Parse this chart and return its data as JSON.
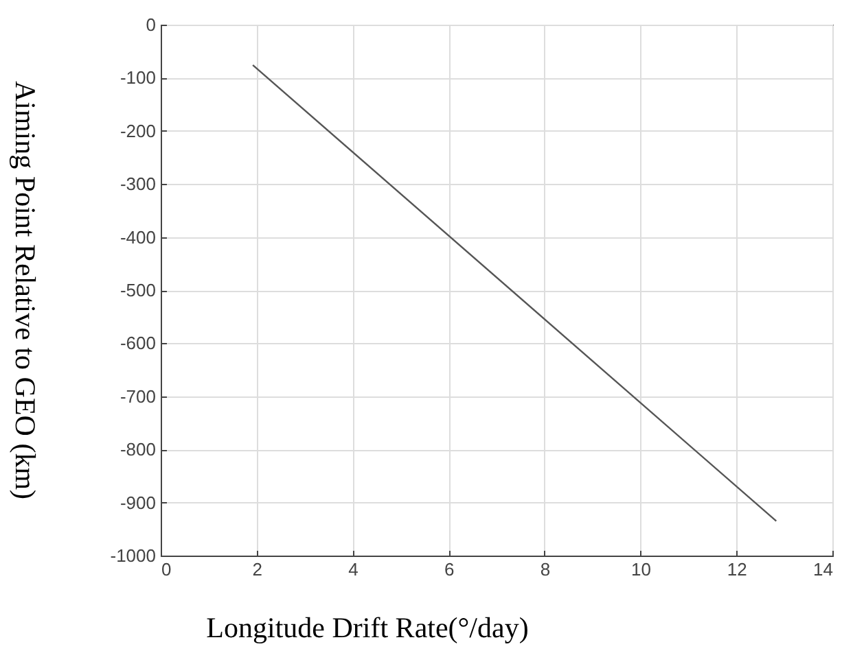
{
  "chart_data": {
    "type": "line",
    "xlabel": "Longitude Drift Rate(°/day)",
    "ylabel": "Aiming Point Relative to GEO (km)",
    "x": [
      1.92,
      12.83
    ],
    "series": [
      {
        "color": "#555555",
        "values": [
          -76,
          -935
        ]
      }
    ],
    "xlim": [
      0,
      14
    ],
    "xticks": [
      0,
      2,
      4,
      6,
      8,
      10,
      12,
      14
    ],
    "ylim": [
      -1000,
      0
    ],
    "yticks": [
      -1000,
      -900,
      -800,
      -700,
      -600,
      -500,
      -400,
      -300,
      -200,
      -100,
      0
    ],
    "grid": true,
    "marker": "none",
    "line_style": "solid"
  }
}
